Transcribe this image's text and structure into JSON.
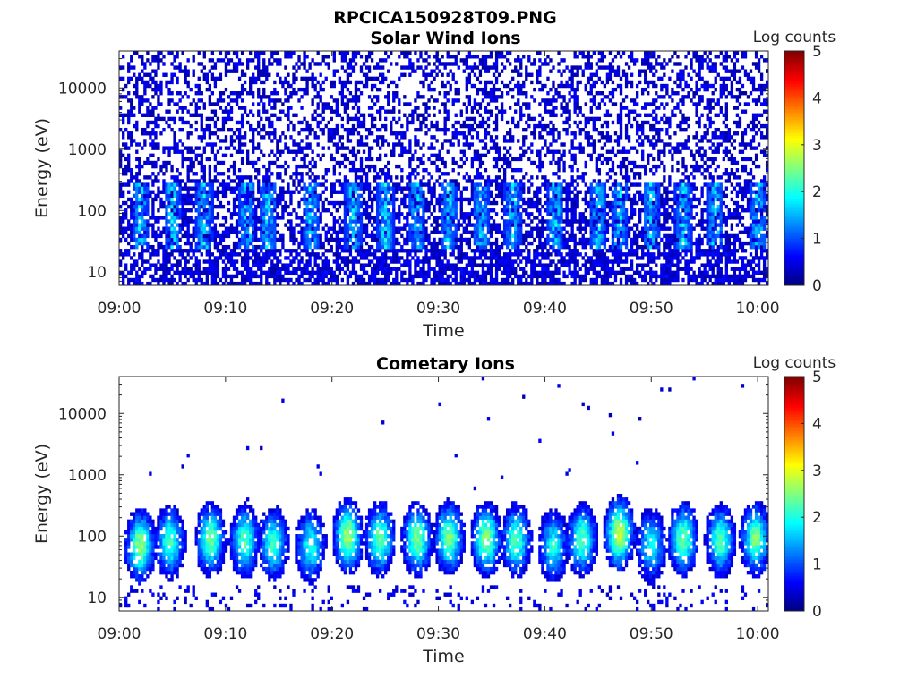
{
  "figure": {
    "title": "RPCICA150928T09.PNG"
  },
  "chart_data": [
    {
      "type": "heatmap",
      "title": "Solar Wind Ions",
      "xlabel": "Time",
      "ylabel": "Energy (eV)",
      "x_start": "09:00",
      "x_end": "10:01",
      "x_ticks": [
        "09:00",
        "09:10",
        "09:20",
        "09:30",
        "09:40",
        "09:50",
        "10:00"
      ],
      "y_scale": "log",
      "ylim": [
        6,
        40000
      ],
      "y_ticks": [
        "10",
        "100",
        "1000",
        "10000"
      ],
      "colorbar": {
        "label": "Log counts",
        "min": 0,
        "max": 5,
        "ticks": [
          "0",
          "1",
          "2",
          "3",
          "4",
          "5"
        ],
        "colormap": "jet"
      },
      "description_values": {
        "background_level_log_counts": 0.3,
        "low_energy_band_eV": [
          30,
          300
        ],
        "low_energy_band_peak_log_counts": 2.0,
        "burst_times_min": [
          2,
          5,
          8,
          12,
          14,
          18,
          22,
          25,
          28,
          31,
          34,
          37,
          41,
          45,
          47,
          50,
          53,
          56,
          60
        ]
      }
    },
    {
      "type": "heatmap",
      "title": "Cometary Ions",
      "xlabel": "Time",
      "ylabel": "Energy (eV)",
      "x_start": "09:00",
      "x_end": "10:01",
      "x_ticks": [
        "09:00",
        "09:10",
        "09:20",
        "09:30",
        "09:40",
        "09:50",
        "10:00"
      ],
      "y_scale": "log",
      "ylim": [
        6,
        40000
      ],
      "y_ticks": [
        "10",
        "100",
        "1000",
        "10000"
      ],
      "colorbar": {
        "label": "Log counts",
        "min": 0,
        "max": 5,
        "ticks": [
          "0",
          "1",
          "2",
          "3",
          "4",
          "5"
        ],
        "colormap": "jet"
      },
      "bursts": [
        {
          "t_min": 2.0,
          "center_eV": 70,
          "peak_log_counts": 2.6
        },
        {
          "t_min": 4.8,
          "center_eV": 80,
          "peak_log_counts": 2.2
        },
        {
          "t_min": 8.6,
          "center_eV": 90,
          "peak_log_counts": 2.4
        },
        {
          "t_min": 11.8,
          "center_eV": 85,
          "peak_log_counts": 2.3
        },
        {
          "t_min": 14.5,
          "center_eV": 75,
          "peak_log_counts": 2.1
        },
        {
          "t_min": 18.0,
          "center_eV": 70,
          "peak_log_counts": 2.0
        },
        {
          "t_min": 21.5,
          "center_eV": 100,
          "peak_log_counts": 2.7
        },
        {
          "t_min": 24.5,
          "center_eV": 90,
          "peak_log_counts": 2.4
        },
        {
          "t_min": 28.0,
          "center_eV": 90,
          "peak_log_counts": 2.5
        },
        {
          "t_min": 31.0,
          "center_eV": 95,
          "peak_log_counts": 2.5
        },
        {
          "t_min": 34.5,
          "center_eV": 90,
          "peak_log_counts": 2.6
        },
        {
          "t_min": 37.3,
          "center_eV": 85,
          "peak_log_counts": 2.3
        },
        {
          "t_min": 40.8,
          "center_eV": 70,
          "peak_log_counts": 2.0
        },
        {
          "t_min": 43.5,
          "center_eV": 90,
          "peak_log_counts": 2.3
        },
        {
          "t_min": 47.0,
          "center_eV": 110,
          "peak_log_counts": 2.9
        },
        {
          "t_min": 50.0,
          "center_eV": 70,
          "peak_log_counts": 1.9
        },
        {
          "t_min": 53.0,
          "center_eV": 90,
          "peak_log_counts": 2.4
        },
        {
          "t_min": 56.5,
          "center_eV": 85,
          "peak_log_counts": 2.3
        },
        {
          "t_min": 59.8,
          "center_eV": 90,
          "peak_log_counts": 2.5
        }
      ]
    }
  ]
}
